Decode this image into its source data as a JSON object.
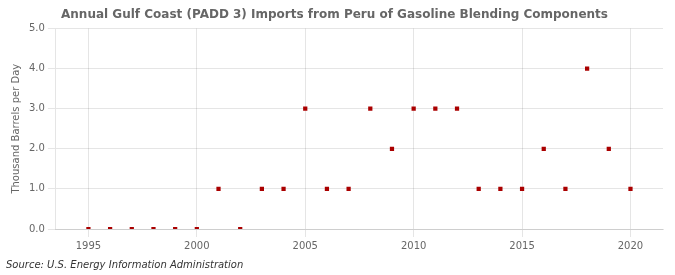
{
  "chart_data": {
    "type": "scatter",
    "title": "Annual Gulf Coast (PADD 3) Imports from Peru of Gasoline Blending Components",
    "ylabel": "Thousand Barrels per Day",
    "source": "Source: U.S. Energy Information Administration",
    "x": [
      1995,
      1996,
      1997,
      1998,
      1999,
      2000,
      2001,
      2002,
      2003,
      2004,
      2005,
      2006,
      2007,
      2008,
      2009,
      2010,
      2011,
      2012,
      2013,
      2014,
      2015,
      2016,
      2017,
      2018,
      2019,
      2020
    ],
    "values": [
      0.0,
      0.0,
      0.0,
      0.0,
      0.0,
      0.0,
      1.0,
      0.0,
      1.0,
      1.0,
      3.0,
      1.0,
      1.0,
      3.0,
      2.0,
      3.0,
      3.0,
      3.0,
      1.0,
      1.0,
      1.0,
      2.0,
      1.0,
      4.0,
      2.0,
      1.0
    ],
    "color": "#aa0000",
    "marker": "square",
    "xlim": [
      1993.5,
      2021.5
    ],
    "xticks": [
      1995,
      2000,
      2005,
      2010,
      2015,
      2020
    ],
    "ylim": [
      0.0,
      5.0
    ],
    "yticks": [
      {
        "value": 0.0,
        "label": "0.0"
      },
      {
        "value": 1.0,
        "label": "1.0"
      },
      {
        "value": 2.0,
        "label": "2.0"
      },
      {
        "value": 3.0,
        "label": "3.0"
      },
      {
        "value": 4.0,
        "label": "4.0"
      },
      {
        "value": 5.0,
        "label": "5.0"
      }
    ],
    "grid": true
  }
}
